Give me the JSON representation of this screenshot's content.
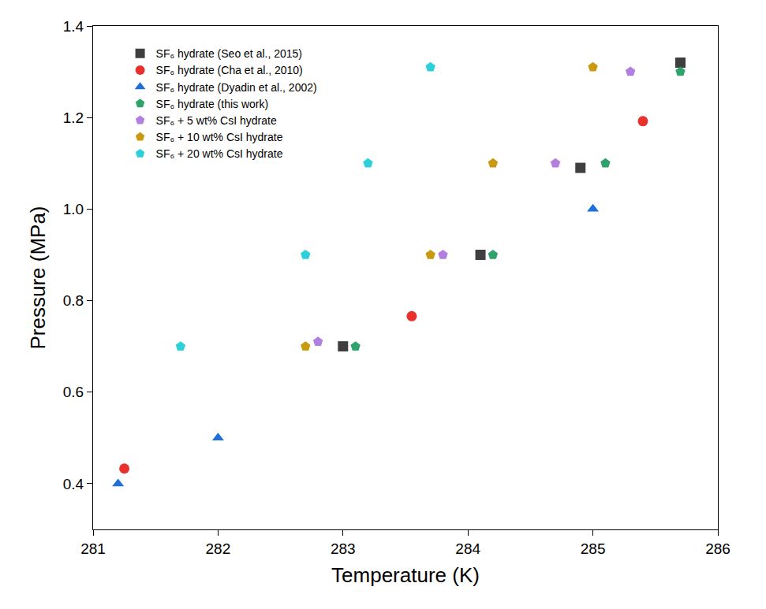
{
  "chart_data": {
    "type": "scatter",
    "x_label": "Temperature (K)",
    "y_label": "Pressure (MPa)",
    "xlim": [
      281,
      286
    ],
    "xticks": [
      281,
      282,
      283,
      284,
      285,
      286
    ],
    "ylim": [
      0.3,
      1.4
    ],
    "yticks": [
      0.4,
      0.6,
      0.8,
      {
        "value": 1,
        "label": "1.0"
      },
      1.2,
      1.4
    ],
    "grid": false,
    "legend": "upper left",
    "series": [
      {
        "name": "SF₆ hydrate (Seo et al., 2015)",
        "color": "#3f3f3f",
        "marker": "square",
        "x": [
          283.0,
          284.1,
          284.9,
          285.7
        ],
        "values": [
          0.7,
          0.9,
          1.09,
          1.32
        ]
      },
      {
        "name": "SF₆ hydrate (Cha et al., 2010)",
        "color": "#e8302c",
        "marker": "circle",
        "x": [
          281.25,
          283.55,
          285.4
        ],
        "values": [
          0.433,
          0.766,
          1.192
        ]
      },
      {
        "name": "SF₆ hydrate (Dyadin et al., 2002)",
        "color": "#1e6fd9",
        "marker": "triangle-up",
        "x": [
          281.2,
          282.0,
          285.0
        ],
        "values": [
          0.4,
          0.5,
          1.0
        ]
      },
      {
        "name": "SF₆ hydrate (this work)",
        "color": "#2fa36b",
        "marker": "pentagon",
        "x": [
          283.1,
          284.2,
          285.1,
          285.7
        ],
        "values": [
          0.7,
          0.9,
          1.1,
          1.3
        ]
      },
      {
        "name": "SF₆ + 5 wt% CsI hydrate",
        "color": "#b07fe0",
        "marker": "pentagon",
        "x": [
          282.8,
          283.8,
          284.7,
          285.3
        ],
        "values": [
          0.71,
          0.9,
          1.1,
          1.3
        ]
      },
      {
        "name": "SF₆ + 10 wt% CsI hydrate",
        "color": "#c99a10",
        "marker": "pentagon",
        "x": [
          282.7,
          283.7,
          284.2,
          285.0
        ],
        "values": [
          0.7,
          0.9,
          1.1,
          1.31
        ]
      },
      {
        "name": "SF₆ + 20 wt% CsI hydrate",
        "color": "#2dd0d8",
        "marker": "pentagon",
        "x": [
          281.7,
          282.7,
          283.2,
          283.7
        ],
        "values": [
          0.7,
          0.9,
          1.1,
          1.31
        ]
      }
    ]
  }
}
